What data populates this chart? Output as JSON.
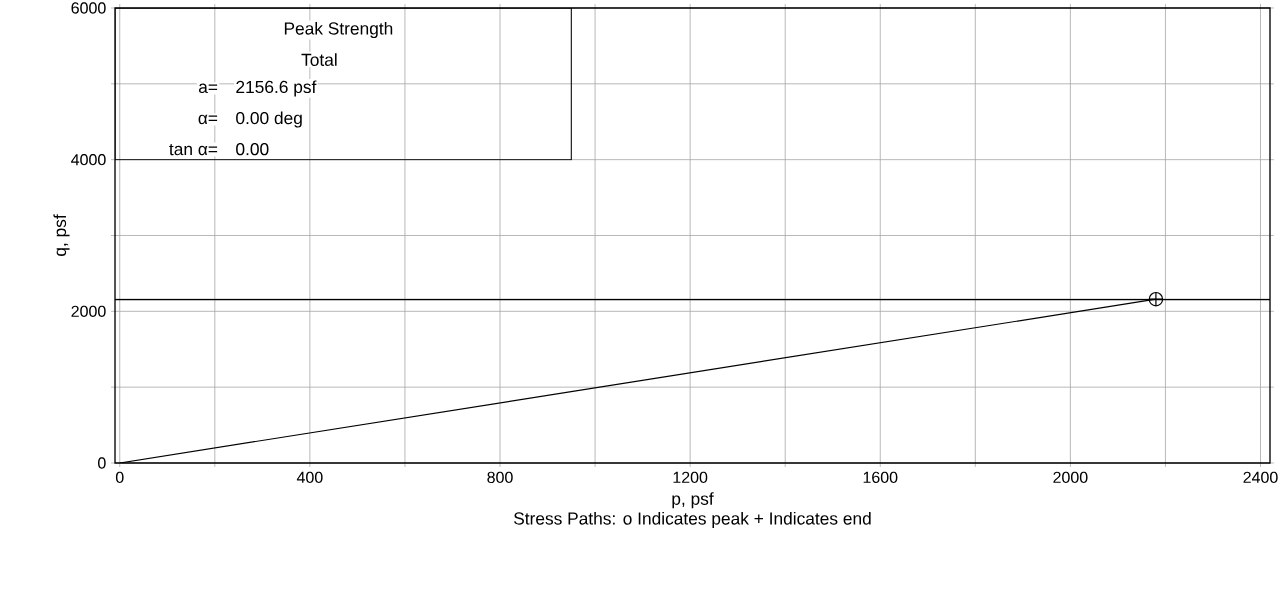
{
  "chart_data": {
    "type": "line",
    "xlabel": "p, psf",
    "ylabel": "q, psf",
    "annotations": [
      "Peak Strength",
      "Total",
      "a=",
      "2156.6 psf",
      "α=",
      "0.00 deg",
      "tan α=",
      "0.00",
      "Stress Paths:    o Indicates peak    + Indicates end"
    ],
    "series": [
      {
        "color": "#000000",
        "values": [
          0,
          2160
        ],
        "marker": "none"
      },
      {
        "type": "scatter",
        "color": "#000000",
        "values": [
          null,
          2160
        ],
        "marker": "circle"
      },
      {
        "type": "scatter",
        "color": "#000000",
        "values": [
          null,
          2160
        ],
        "marker": "cross"
      }
    ],
    "x": [
      0,
      2180
    ],
    "xlim": [
      -10,
      2420
    ],
    "ylim": [
      0,
      6000
    ],
    "xticks": [
      0,
      {
        "value": 200,
        "label": null
      },
      400,
      {
        "value": 600,
        "label": null
      },
      800,
      {
        "value": 1000,
        "label": null
      },
      1200,
      {
        "value": 1400,
        "label": null
      },
      1600,
      {
        "value": 1800,
        "label": null
      },
      2000,
      {
        "value": 2200,
        "label": null
      },
      2400
    ],
    "yticks": [
      0,
      {
        "value": 1000,
        "label": null
      },
      2000,
      {
        "value": 3000,
        "label": null
      },
      4000,
      {
        "value": 5000,
        "label": null
      },
      6000
    ],
    "grid": true,
    "ref_lines": [
      {
        "axis": "y",
        "value": 2156.6,
        "color": "#000000"
      }
    ]
  }
}
